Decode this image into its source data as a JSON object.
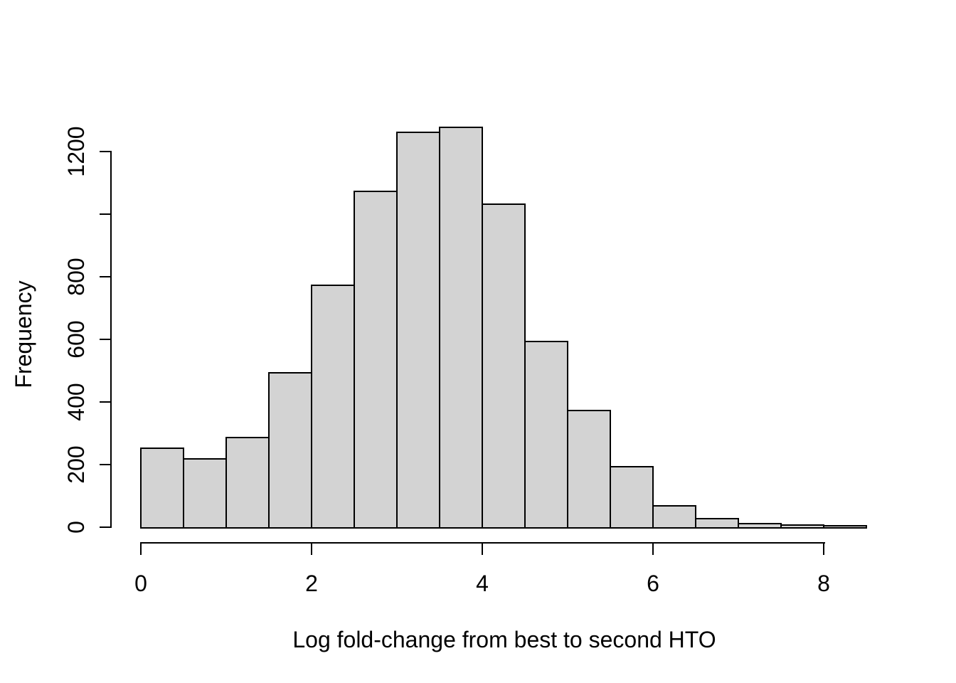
{
  "chart_data": {
    "type": "bar",
    "subtype": "histogram",
    "title": "",
    "xlabel": "Log fold-change from best to second HTO",
    "ylabel": "Frequency",
    "bin_width": 0.5,
    "bin_edges": [
      0,
      0.5,
      1,
      1.5,
      2,
      2.5,
      3,
      3.5,
      4,
      4.5,
      5,
      5.5,
      6,
      6.5,
      7,
      7.5,
      8,
      8.5
    ],
    "counts": [
      250,
      215,
      285,
      490,
      770,
      1070,
      1260,
      1275,
      1030,
      590,
      370,
      190,
      65,
      25,
      8,
      5,
      2
    ],
    "x_ticks": [
      0,
      2,
      4,
      6,
      8
    ],
    "x_tick_labels": [
      "0",
      "2",
      "4",
      "6",
      "8"
    ],
    "y_ticks": [
      0,
      200,
      400,
      600,
      800,
      1000,
      1200
    ],
    "y_tick_labels": [
      "0",
      "200",
      "400",
      "600",
      "800",
      "",
      "1200"
    ],
    "xlim": [
      0,
      8.5
    ],
    "ylim": [
      0,
      1280
    ],
    "grid": false,
    "legend": false,
    "bar_fill": "#d3d3d3",
    "bar_border": "#000000",
    "axis_color": "#000000",
    "background": "#ffffff"
  }
}
